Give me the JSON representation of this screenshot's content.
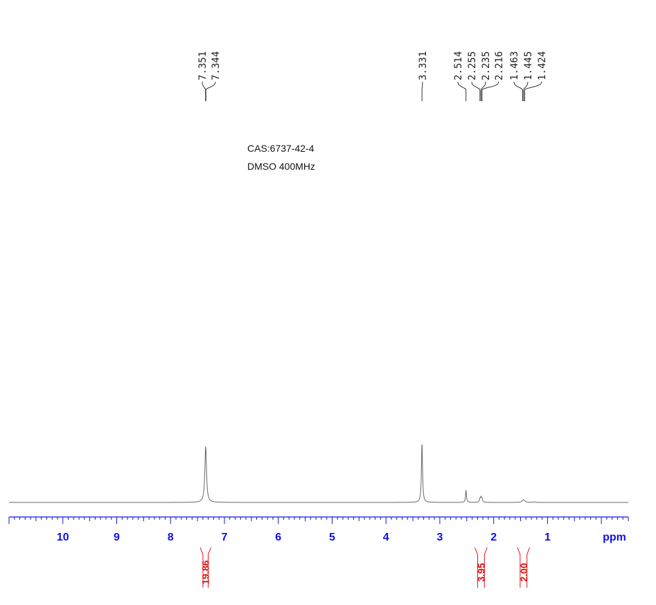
{
  "chart_data": {
    "type": "line",
    "title": "",
    "info": [
      "CAS:6737-42-4",
      "DMSO 400MHz"
    ],
    "xlabel": "ppm",
    "xlim": [
      11.0,
      -0.5
    ],
    "x_reversed": true,
    "xticks": [
      10,
      9,
      8,
      7,
      6,
      5,
      4,
      3,
      2,
      1
    ],
    "peaks": [
      {
        "ppm": 7.348,
        "height": 0.95,
        "width": 0.018
      },
      {
        "ppm": 3.331,
        "height": 1.0,
        "width": 0.012
      },
      {
        "ppm": 2.514,
        "height": 0.21,
        "width": 0.01
      },
      {
        "ppm": 2.255,
        "height": 0.05,
        "width": 0.012
      },
      {
        "ppm": 2.235,
        "height": 0.08,
        "width": 0.012
      },
      {
        "ppm": 2.216,
        "height": 0.05,
        "width": 0.012
      },
      {
        "ppm": 1.463,
        "height": 0.018,
        "width": 0.02
      },
      {
        "ppm": 1.445,
        "height": 0.026,
        "width": 0.02
      },
      {
        "ppm": 1.424,
        "height": 0.018,
        "width": 0.02
      },
      {
        "ppm": 1.25,
        "height": 0.012,
        "width": 0.015
      }
    ],
    "peak_labels": [
      {
        "text": "7.351",
        "ppm": 7.351
      },
      {
        "text": "7.344",
        "ppm": 7.344
      },
      {
        "text": "3.331",
        "ppm": 3.331
      },
      {
        "text": "2.514",
        "ppm": 2.514
      },
      {
        "text": "2.255",
        "ppm": 2.255
      },
      {
        "text": "2.235",
        "ppm": 2.235
      },
      {
        "text": "2.216",
        "ppm": 2.216
      },
      {
        "text": "1.463",
        "ppm": 1.463
      },
      {
        "text": "1.445",
        "ppm": 1.445
      },
      {
        "text": "1.424",
        "ppm": 1.424
      }
    ],
    "integrals": [
      {
        "value": "19.86",
        "from": 7.45,
        "to": 7.25
      },
      {
        "value": "3.95",
        "from": 2.35,
        "to": 2.12
      },
      {
        "value": "2.00",
        "from": 1.56,
        "to": 1.33
      }
    ],
    "colors": {
      "axis": "#1010e8",
      "trace": "#666666",
      "integral": "#e01010",
      "text": "#222222"
    }
  }
}
